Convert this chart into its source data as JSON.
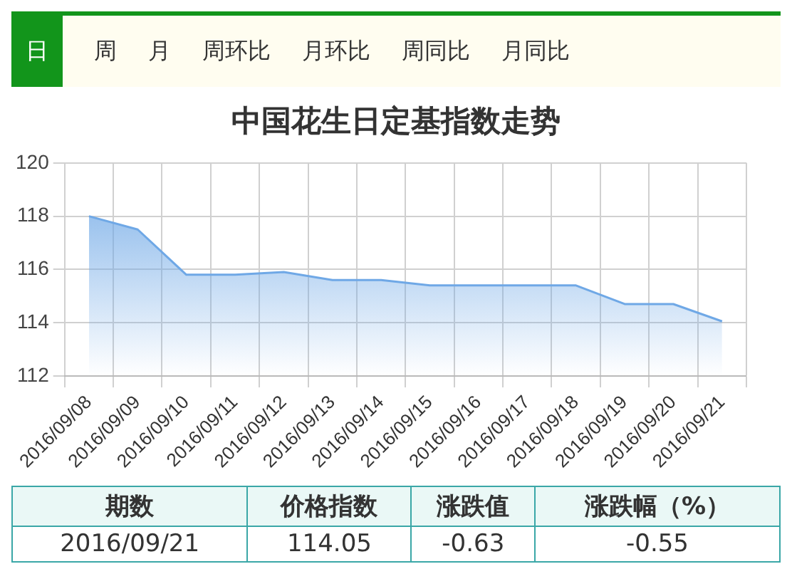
{
  "chart_data": {
    "type": "area",
    "title": "中国花生日定基指数走势",
    "categories": [
      "2016/09/08",
      "2016/09/09",
      "2016/09/10",
      "2016/09/11",
      "2016/09/12",
      "2016/09/13",
      "2016/09/14",
      "2016/09/15",
      "2016/09/16",
      "2016/09/17",
      "2016/09/18",
      "2016/09/19",
      "2016/09/20",
      "2016/09/21"
    ],
    "series": [
      {
        "color": "#6fa8e6",
        "values": [
          118.0,
          117.5,
          115.8,
          115.8,
          115.9,
          115.6,
          115.6,
          115.4,
          115.4,
          115.4,
          115.4,
          114.7,
          114.7,
          114.05
        ]
      }
    ],
    "ylim": [
      112,
      120
    ],
    "yticks": [
      112,
      114,
      116,
      118,
      120
    ],
    "grid": true,
    "marker": "none",
    "annotations": [
      "日",
      "周",
      "月",
      "周环比",
      "月环比",
      "周同比",
      "月同比",
      "期数",
      "价格指数",
      "涨跌值",
      "涨跌幅（%）",
      "2016/09/21",
      "114.05",
      "-0.63",
      "-0.55"
    ]
  }
}
